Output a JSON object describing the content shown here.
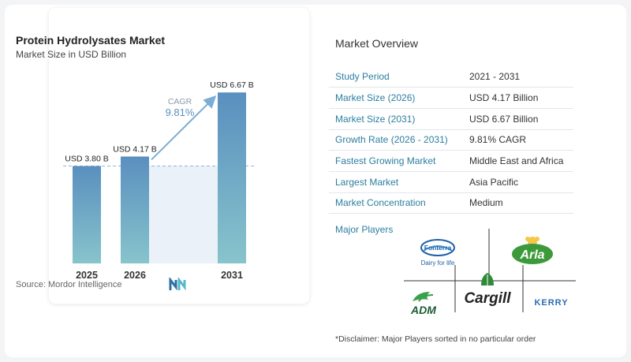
{
  "chart": {
    "title": "Protein Hydrolysates Market",
    "subtitle": "Market Size in USD Billion",
    "source": "Source:  Mordor Intelligence",
    "cagr_label": "CAGR",
    "cagr_value": "9.81%",
    "colors": {
      "bar_top": "#5a8fbf",
      "bar_bottom": "#87c4cc",
      "arrow": "#7aaed6",
      "cagr_text": "#5a90c0",
      "dash": "#8fb6d9",
      "band": "#eaf1f8"
    }
  },
  "chart_data": {
    "type": "bar",
    "title": "Protein Hydrolysates Market",
    "subtitle": "Market Size in USD Billion",
    "categories": [
      "2025",
      "2026",
      "2031"
    ],
    "values": [
      3.8,
      4.17,
      6.67
    ],
    "value_labels": [
      "USD 3.80 B",
      "USD 4.17 B",
      "USD 6.67 B"
    ],
    "xlabel": "",
    "ylabel": "",
    "ylim": [
      0,
      7.2
    ],
    "grid": false,
    "annotation": {
      "text": "CAGR 9.81%",
      "from": "2026",
      "to": "2031"
    }
  },
  "overview": {
    "title": "Market Overview",
    "rows": [
      {
        "key": "Study Period",
        "value": "2021 - 2031"
      },
      {
        "key": "Market Size (2026)",
        "value": "USD 4.17 Billion"
      },
      {
        "key": "Market Size (2031)",
        "value": "USD 6.67 Billion"
      },
      {
        "key": "Growth Rate (2026 - 2031)",
        "value": "9.81% CAGR"
      },
      {
        "key": "Fastest Growing Market",
        "value": "Middle East and Africa"
      },
      {
        "key": "Largest Market",
        "value": "Asia Pacific"
      },
      {
        "key": "Market Concentration",
        "value": "Medium"
      }
    ]
  },
  "players": {
    "title": "Major Players",
    "logos": [
      {
        "name": "fonterra-logo",
        "line1": "Fonterra",
        "line2": "Dairy for life"
      },
      {
        "name": "arla-logo",
        "text": "Arla"
      },
      {
        "name": "adm-logo",
        "text": "ADM"
      },
      {
        "name": "cargill-logo",
        "text": "Cargill"
      },
      {
        "name": "kerry-logo",
        "text": "KERRY"
      }
    ],
    "disclaimer": "*Disclaimer: Major Players sorted in no particular order"
  }
}
